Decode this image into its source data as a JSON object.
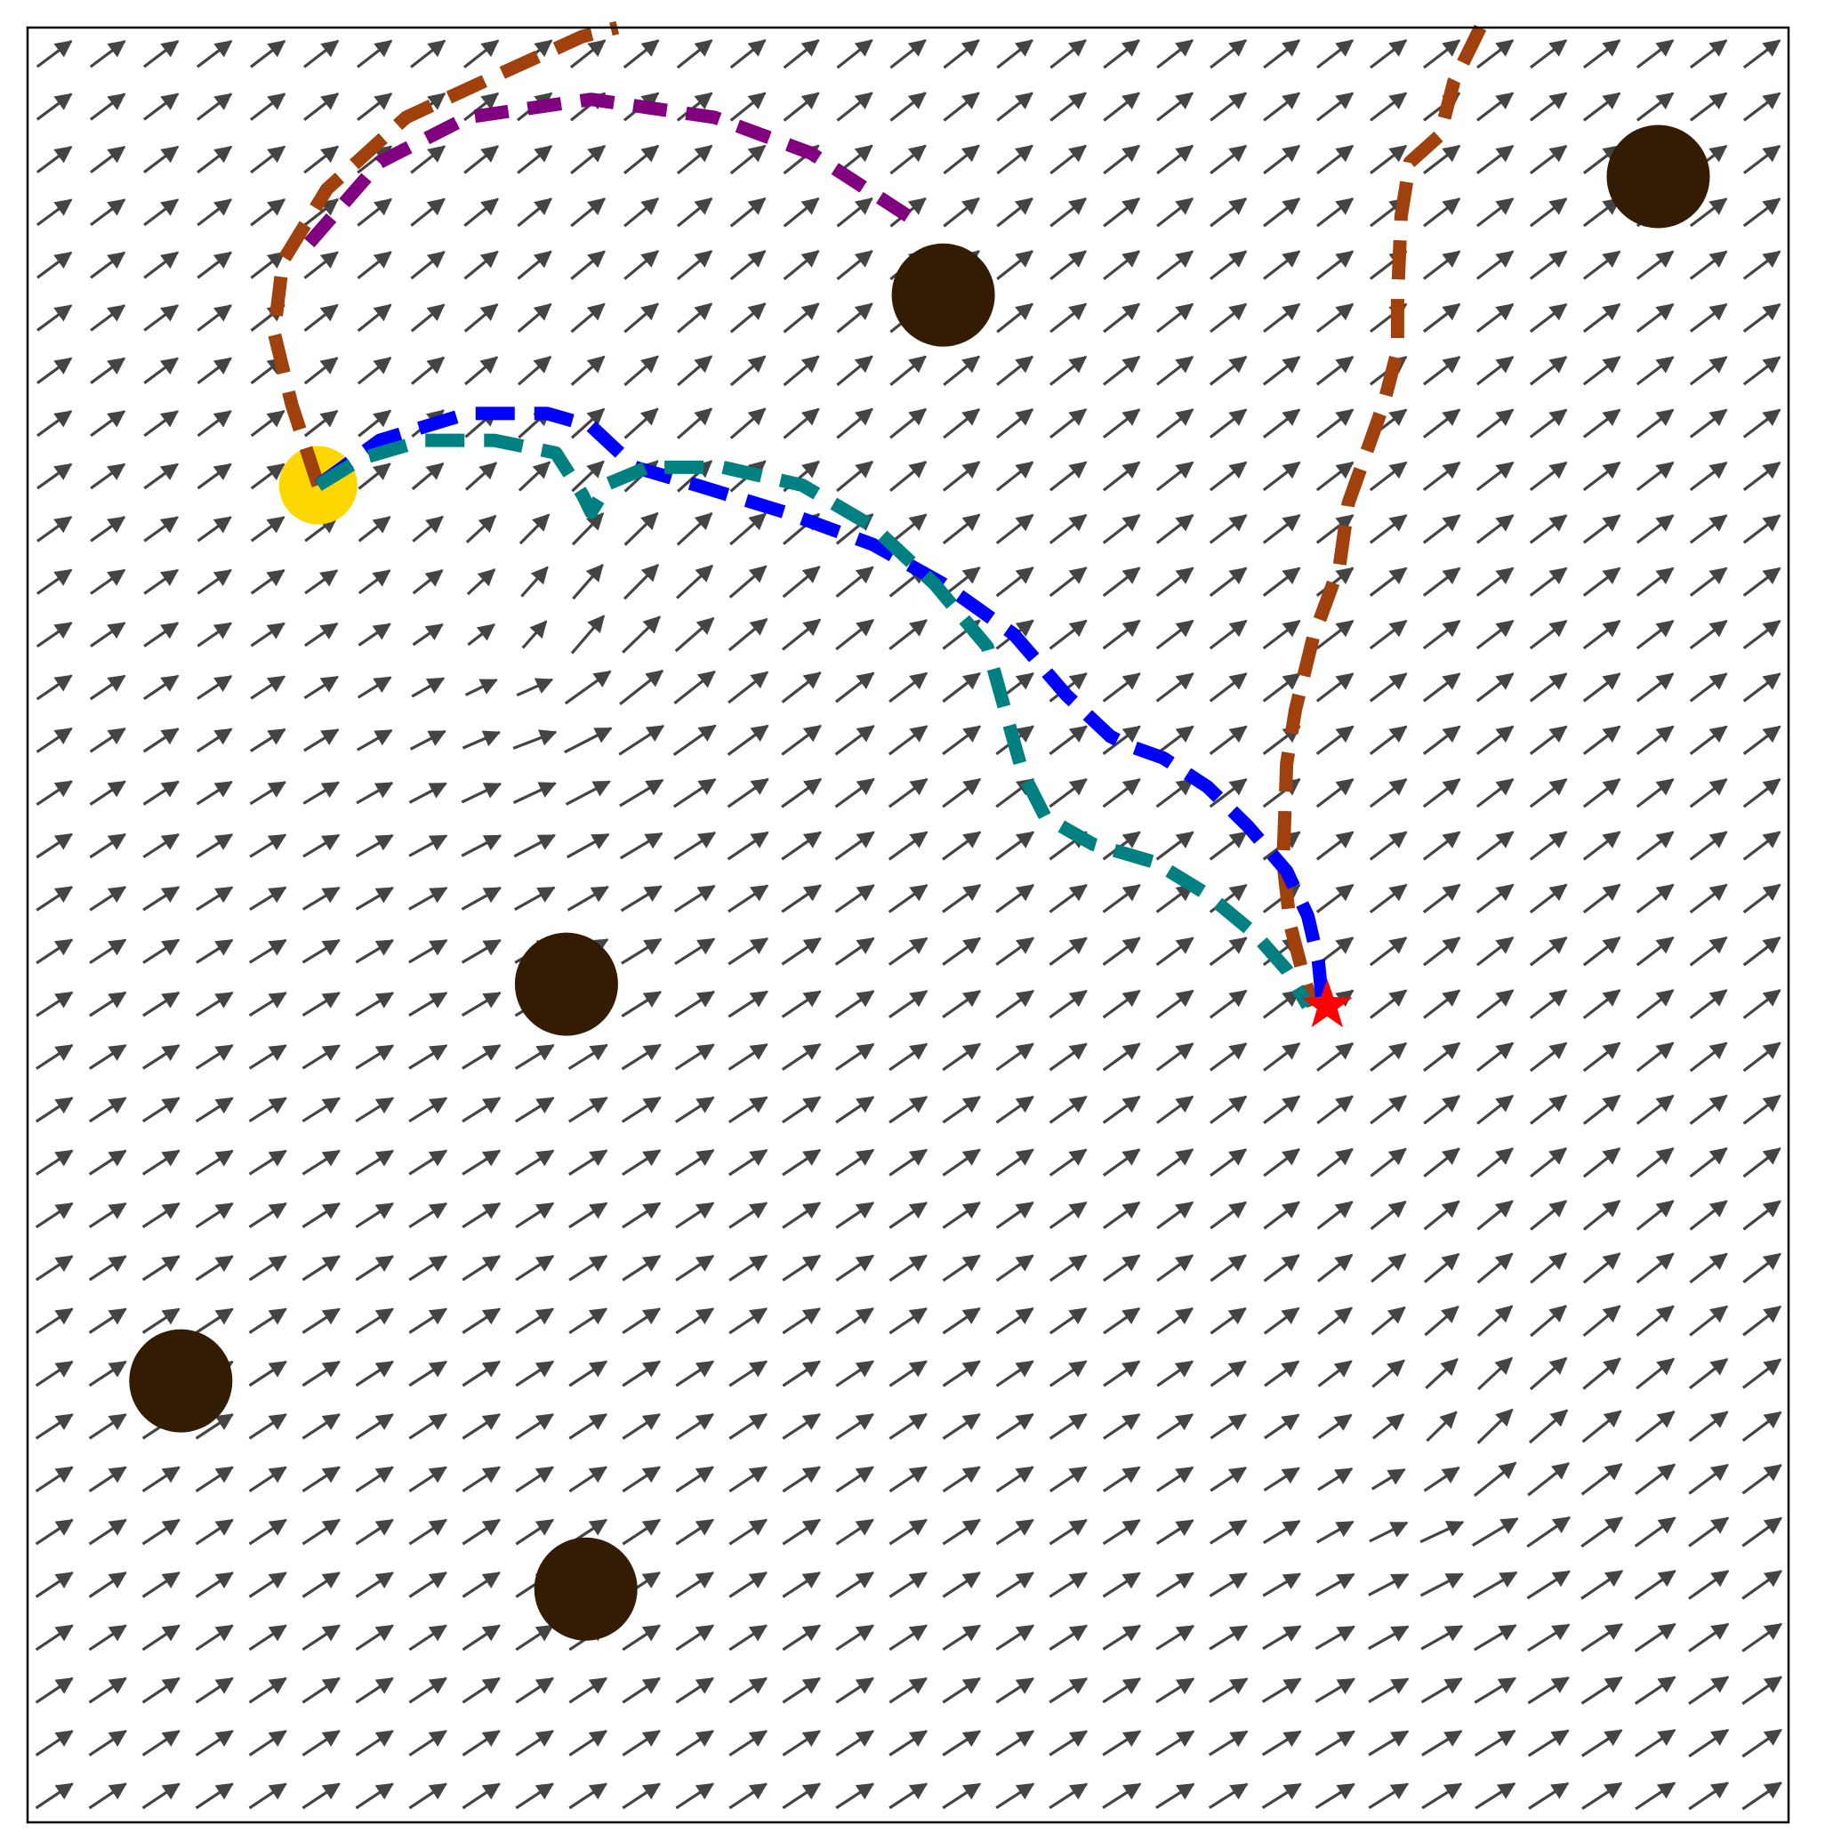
{
  "chart_data": {
    "type": "vector-field",
    "x_range": [
      0,
      1
    ],
    "y_range": [
      0,
      1
    ],
    "colors": {
      "background": "#ffffff",
      "frame": "#000000",
      "arrow": "#444444",
      "obstacle": "#331c03",
      "start": "#ffd700",
      "goal": "#ff0000"
    },
    "field": {
      "grid_cols": 33,
      "grid_rows": 34,
      "base_direction_deg": 35,
      "attractors": [
        {
          "x": 0.3,
          "y": 0.64,
          "strength": 0.9,
          "note_shown": false
        },
        {
          "x": 0.81,
          "y": 0.19,
          "strength": 0.6,
          "note_shown": false
        }
      ]
    },
    "start": {
      "x": 0.165,
      "y": 0.745
    },
    "goal": {
      "x": 0.738,
      "y": 0.455
    },
    "obstacles": [
      {
        "x": 0.52,
        "y": 0.851
      },
      {
        "x": 0.926,
        "y": 0.917
      },
      {
        "x": 0.306,
        "y": 0.467
      },
      {
        "x": 0.087,
        "y": 0.246
      },
      {
        "x": 0.317,
        "y": 0.13
      }
    ],
    "paths": [
      {
        "color": "#800080",
        "dash": "short",
        "points": [
          [
            0.5,
            0.895
          ],
          [
            0.445,
            0.93
          ],
          [
            0.39,
            0.95
          ],
          [
            0.32,
            0.96
          ],
          [
            0.25,
            0.95
          ],
          [
            0.2,
            0.925
          ],
          [
            0.16,
            0.88
          ]
        ]
      },
      {
        "color": "#a0410d",
        "dash": "long",
        "points": [
          [
            0.165,
            0.745
          ],
          [
            0.15,
            0.79
          ],
          [
            0.14,
            0.83
          ],
          [
            0.145,
            0.87
          ],
          [
            0.17,
            0.91
          ],
          [
            0.215,
            0.95
          ],
          [
            0.27,
            0.975
          ],
          [
            0.315,
            0.995
          ],
          [
            0.335,
            1.0
          ]
        ]
      },
      {
        "color": "#a0410d",
        "dash": "long",
        "points": [
          [
            0.825,
            1.0
          ],
          [
            0.81,
            0.97
          ],
          [
            0.802,
            0.94
          ],
          [
            0.785,
            0.925
          ],
          [
            0.78,
            0.895
          ],
          [
            0.778,
            0.85
          ],
          [
            0.778,
            0.82
          ],
          [
            0.77,
            0.79
          ],
          [
            0.75,
            0.735
          ],
          [
            0.745,
            0.7
          ],
          [
            0.73,
            0.66
          ],
          [
            0.72,
            0.62
          ],
          [
            0.715,
            0.59
          ],
          [
            0.713,
            0.535
          ],
          [
            0.717,
            0.5
          ],
          [
            0.725,
            0.47
          ],
          [
            0.73,
            0.455
          ]
        ]
      },
      {
        "color": "#0000ff",
        "dash": "long",
        "points": [
          [
            0.165,
            0.745
          ],
          [
            0.2,
            0.77
          ],
          [
            0.25,
            0.785
          ],
          [
            0.295,
            0.785
          ],
          [
            0.32,
            0.778
          ],
          [
            0.345,
            0.755
          ],
          [
            0.38,
            0.745
          ],
          [
            0.43,
            0.73
          ],
          [
            0.48,
            0.712
          ],
          [
            0.52,
            0.69
          ],
          [
            0.56,
            0.662
          ],
          [
            0.59,
            0.628
          ],
          [
            0.615,
            0.605
          ],
          [
            0.625,
            0.6
          ],
          [
            0.645,
            0.593
          ],
          [
            0.67,
            0.577
          ],
          [
            0.693,
            0.555
          ],
          [
            0.715,
            0.53
          ],
          [
            0.727,
            0.505
          ],
          [
            0.733,
            0.48
          ],
          [
            0.735,
            0.46
          ]
        ]
      },
      {
        "color": "#008080",
        "dash": "long",
        "points": [
          [
            0.165,
            0.745
          ],
          [
            0.19,
            0.76
          ],
          [
            0.225,
            0.77
          ],
          [
            0.265,
            0.77
          ],
          [
            0.3,
            0.763
          ],
          [
            0.315,
            0.74
          ],
          [
            0.32,
            0.73
          ],
          [
            0.33,
            0.746
          ],
          [
            0.352,
            0.755
          ],
          [
            0.395,
            0.755
          ],
          [
            0.44,
            0.745
          ],
          [
            0.48,
            0.722
          ],
          [
            0.515,
            0.69
          ],
          [
            0.545,
            0.655
          ],
          [
            0.555,
            0.62
          ],
          [
            0.565,
            0.585
          ],
          [
            0.578,
            0.56
          ],
          [
            0.605,
            0.545
          ],
          [
            0.64,
            0.535
          ],
          [
            0.67,
            0.517
          ],
          [
            0.697,
            0.495
          ],
          [
            0.715,
            0.475
          ],
          [
            0.727,
            0.455
          ]
        ]
      }
    ]
  }
}
